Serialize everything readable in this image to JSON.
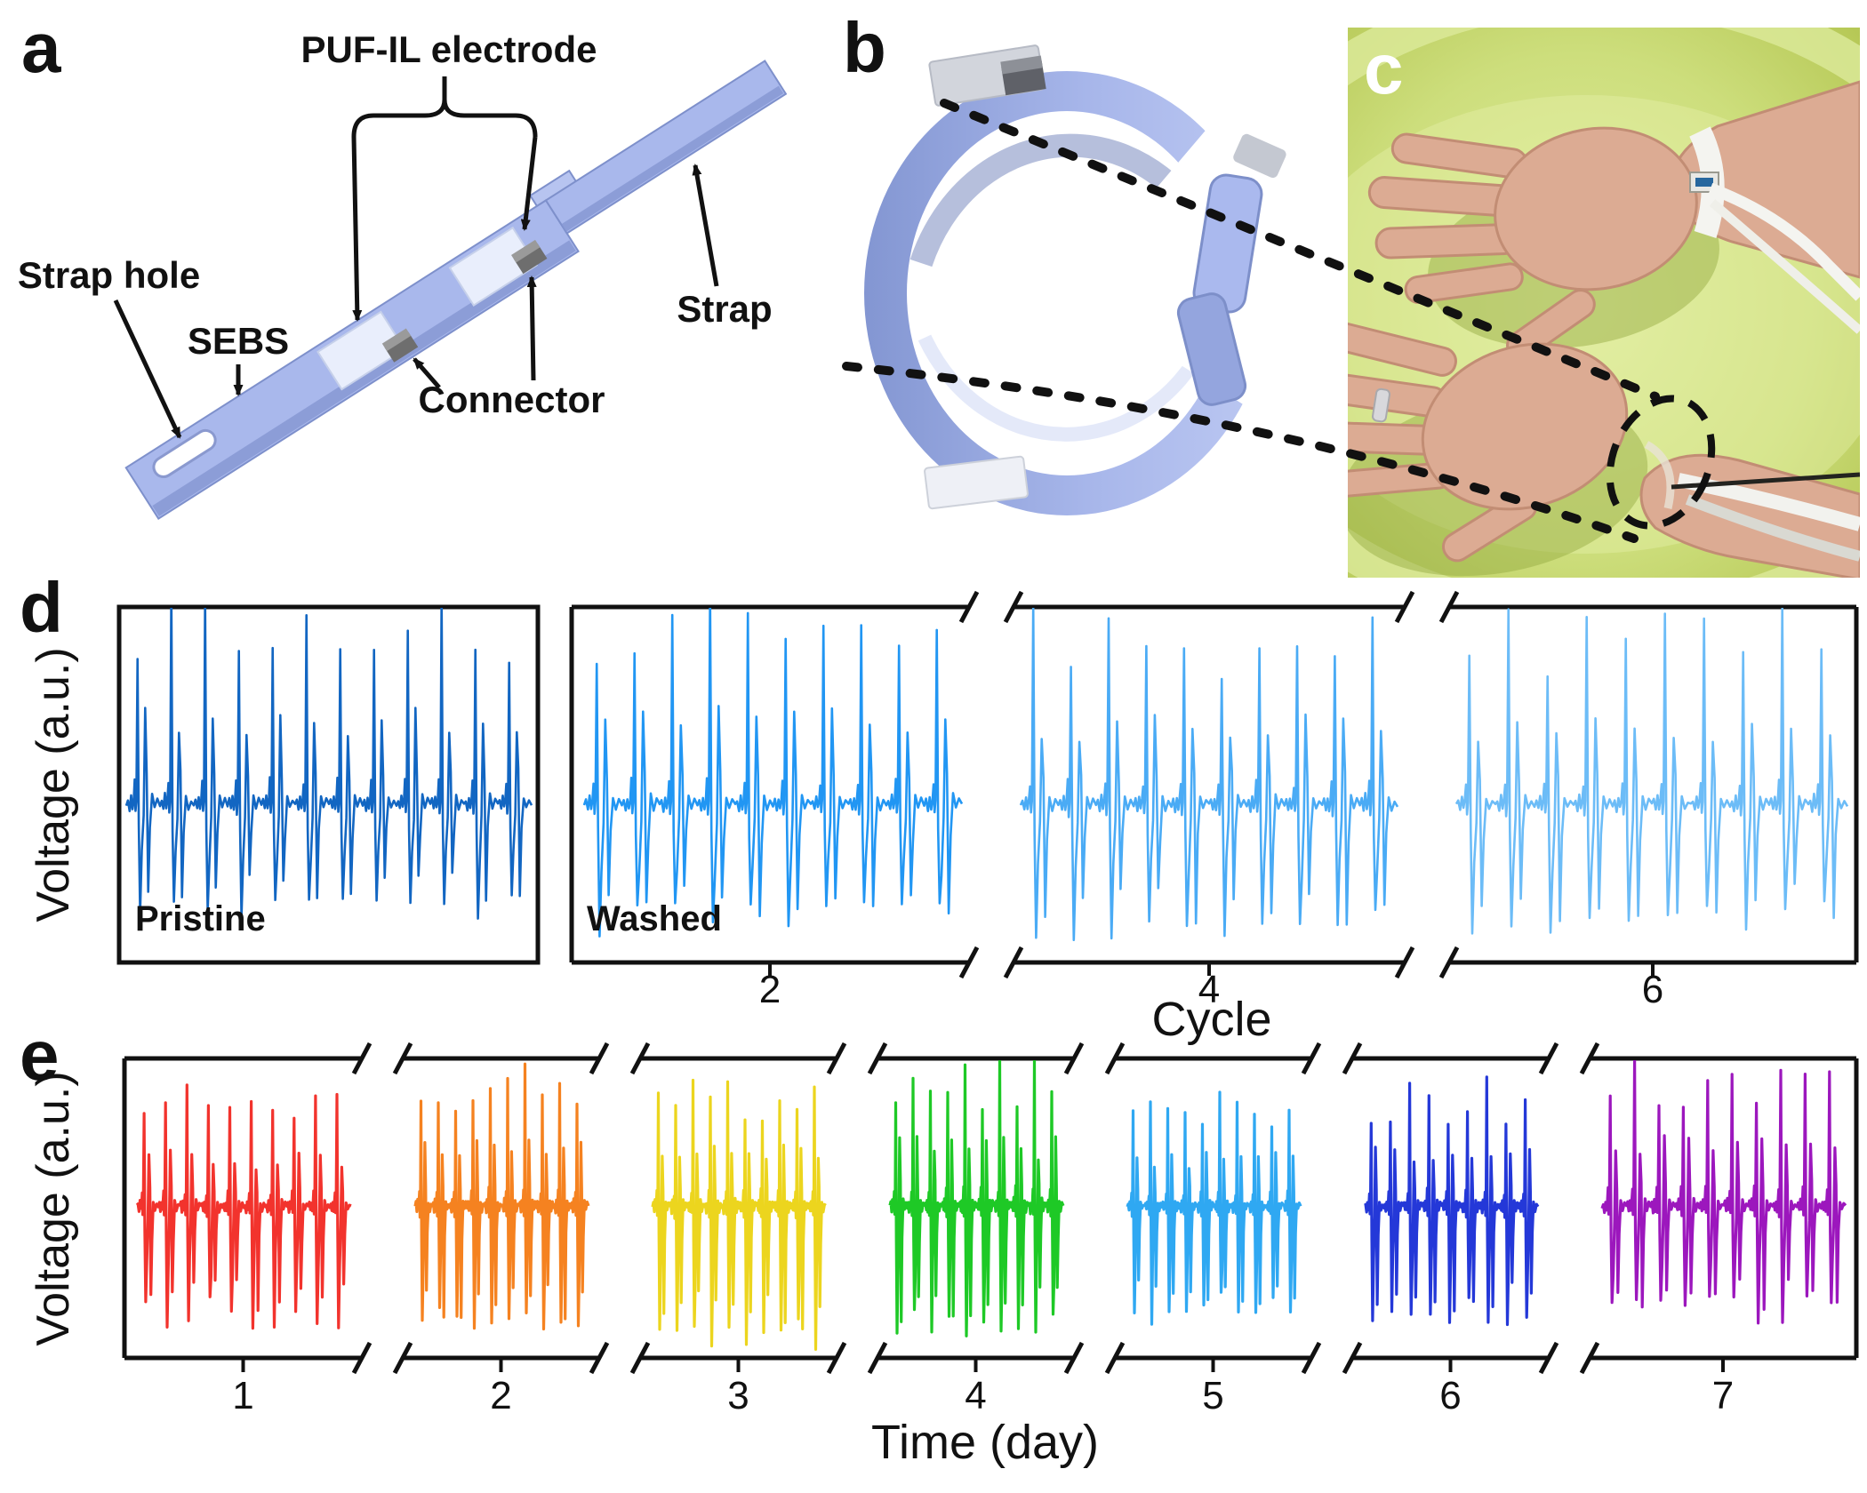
{
  "panels": {
    "a": {
      "label": "a",
      "annotations": {
        "puf_il_electrode": "PUF-IL electrode",
        "sebs": "SEBS",
        "strap_hole": "Strap hole",
        "connector": "Connector",
        "strap": "Strap"
      },
      "colors": {
        "strap_body": "#a9b8ec",
        "strap_edge": "#7e90cb",
        "electrode_pad": "#e9eefc",
        "connector_block": "#6e6e6e",
        "hole": "#ffffff"
      }
    },
    "b": {
      "label": "b",
      "colors": {
        "band": "#a3b2e8",
        "top_patch": "#d2d5dc",
        "connector_block": "#5f6168",
        "bottom_patch": "#eef0f6"
      }
    },
    "c": {
      "label": "c",
      "colors": {
        "water": "#c3d465",
        "skin": "#dcab93",
        "strap_cable": "#f4f4f0",
        "dashed_marker": "#111111"
      }
    },
    "d": {
      "label": "d"
    },
    "e": {
      "label": "e"
    }
  },
  "chart_data": [
    {
      "id": "panel_d",
      "type": "line",
      "xlabel": "Cycle",
      "ylabel": "Voltage (a.u.)",
      "x_tick_labels": [
        "2",
        "4",
        "6"
      ],
      "y_tick_labels": [],
      "axis_breaks_between_segments": true,
      "signal": "ECG-like voltage pulse train, arbitrary units, baseline mid-height with tall R spikes and deep S dips",
      "segments": [
        {
          "group": "Pristine",
          "tick": "",
          "color": "#1266c2",
          "beats": 12,
          "amp_rel": 1.0,
          "dip_rel": 1.0
        },
        {
          "group": "Washed",
          "tick": "2",
          "color": "#2196f3",
          "beats": 10,
          "amp_rel": 0.97,
          "dip_rel": 1.15
        },
        {
          "group": "Washed",
          "tick": "4",
          "color": "#4aabf5",
          "beats": 10,
          "amp_rel": 0.93,
          "dip_rel": 1.2
        },
        {
          "group": "Washed",
          "tick": "6",
          "color": "#6cbcf7",
          "beats": 10,
          "amp_rel": 0.9,
          "dip_rel": 1.15
        }
      ]
    },
    {
      "id": "panel_e",
      "type": "line",
      "xlabel": "Time (day)",
      "ylabel": "Voltage (a.u.)",
      "x_tick_labels": [
        "1",
        "2",
        "3",
        "4",
        "5",
        "6",
        "7"
      ],
      "y_tick_labels": [],
      "axis_breaks_between_segments": true,
      "signal": "ECG-like voltage recordings measured once per day for seven days",
      "segments": [
        {
          "tick": "1",
          "color": "#f2332d",
          "beats": 10,
          "amp_rel": 0.78,
          "dip_rel": 0.95
        },
        {
          "tick": "2",
          "color": "#f58220",
          "beats": 10,
          "amp_rel": 0.95,
          "dip_rel": 1.0
        },
        {
          "tick": "3",
          "color": "#ecd51e",
          "beats": 10,
          "amp_rel": 0.88,
          "dip_rel": 1.1
        },
        {
          "tick": "4",
          "color": "#1ec926",
          "beats": 10,
          "amp_rel": 1.0,
          "dip_rel": 1.05
        },
        {
          "tick": "5",
          "color": "#2fa8f2",
          "beats": 10,
          "amp_rel": 0.74,
          "dip_rel": 0.9
        },
        {
          "tick": "6",
          "color": "#2438d8",
          "beats": 9,
          "amp_rel": 0.85,
          "dip_rel": 0.95
        },
        {
          "tick": "7",
          "color": "#9c17bd",
          "beats": 10,
          "amp_rel": 1.0,
          "dip_rel": 0.95
        }
      ]
    }
  ]
}
